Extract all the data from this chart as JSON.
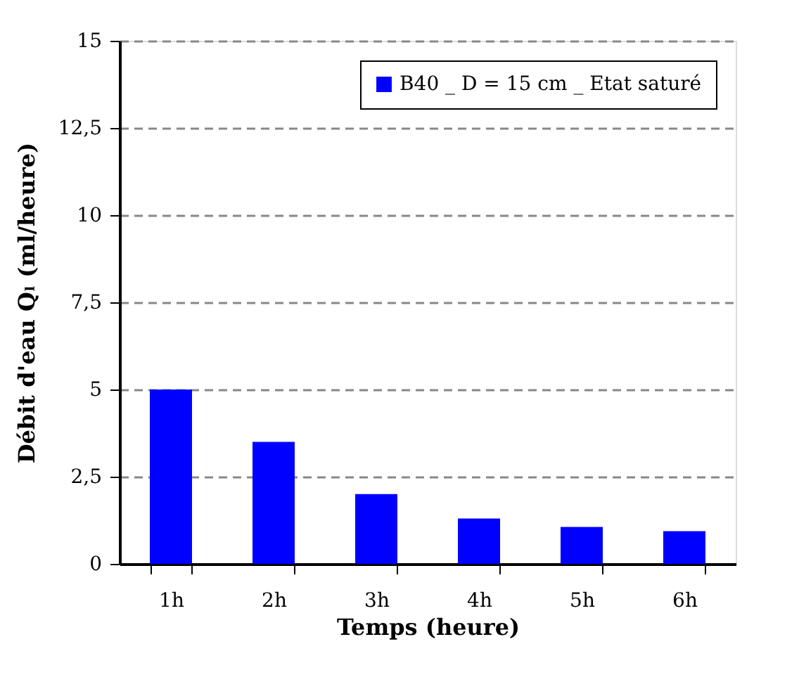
{
  "chart_data": {
    "type": "bar",
    "xlabel": "Temps (heure)",
    "ylabel": "Débit d'eau Qₗ (ml/heure)",
    "categories": [
      "1h",
      "2h",
      "3h",
      "4h",
      "5h",
      "6h"
    ],
    "series": [
      {
        "name": "B40 _ D = 15 cm _ Etat saturé",
        "color": "#0000ff",
        "values": [
          5.0,
          3.5,
          2.0,
          1.3,
          1.06,
          0.94
        ]
      }
    ],
    "ylim": [
      0,
      15
    ],
    "yticks": [
      0,
      {
        "value": 2.5,
        "label": "2,5"
      },
      5,
      {
        "value": 7.5,
        "label": "7,5"
      },
      10,
      {
        "value": 12.5,
        "label": "12,5"
      },
      15
    ],
    "grid": "y",
    "legend": "top right"
  }
}
